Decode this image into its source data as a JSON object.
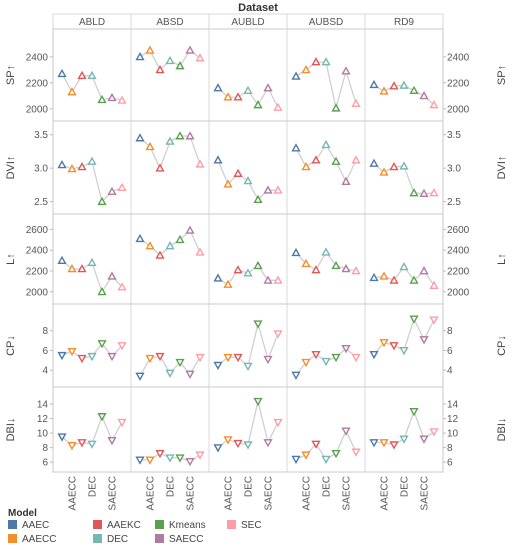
{
  "chart_data": {
    "type": "line",
    "title": "Dataset",
    "datasets": [
      "ABLD",
      "ABSD",
      "AUBLD",
      "AUBSD",
      "RD9"
    ],
    "x_categories": [
      "AAEC",
      "AAECC",
      "AAEKC",
      "DEC",
      "Kmeans",
      "SAECC",
      "SEC"
    ],
    "x_tick_labels": [
      "AAECC",
      "DEC",
      "SAECC"
    ],
    "legend_title": "Model",
    "series": [
      {
        "name": "AAEC",
        "color": "#4e79a7"
      },
      {
        "name": "AAECC",
        "color": "#f28e2b"
      },
      {
        "name": "AAEKC",
        "color": "#e15759"
      },
      {
        "name": "DEC",
        "color": "#76b7b2"
      },
      {
        "name": "Kmeans",
        "color": "#59a14f"
      },
      {
        "name": "SAECC",
        "color": "#b07aa1"
      },
      {
        "name": "SEC",
        "color": "#ff9da7"
      }
    ],
    "rows": [
      {
        "metric": "SP↑",
        "arrow": "up",
        "ylim": [
          1960,
          2560
        ],
        "ticks": [
          2000,
          2200,
          2400
        ],
        "values": {
          "ABLD": [
            2270,
            2130,
            2255,
            2255,
            2070,
            2085,
            2065
          ],
          "ABSD": [
            2400,
            2450,
            2300,
            2370,
            2330,
            2450,
            2390
          ],
          "AUBLD": [
            2160,
            2090,
            2090,
            2140,
            2030,
            2160,
            2010
          ],
          "AUBSD": [
            2250,
            2300,
            2360,
            2360,
            2005,
            2290,
            2040
          ],
          "RD9": [
            2185,
            2135,
            2175,
            2180,
            2140,
            2100,
            2030
          ]
        }
      },
      {
        "metric": "DVI↑",
        "arrow": "up",
        "ylim": [
          2.42,
          3.6
        ],
        "ticks": [
          2.5,
          3.0,
          3.5
        ],
        "values": {
          "ABLD": [
            3.05,
            2.99,
            3.02,
            3.1,
            2.5,
            2.65,
            2.71
          ],
          "ABSD": [
            3.45,
            3.32,
            3.0,
            3.4,
            3.48,
            3.48,
            3.06
          ],
          "AUBLD": [
            3.12,
            2.76,
            2.92,
            2.81,
            2.53,
            2.67,
            2.67
          ],
          "AUBSD": [
            3.3,
            3.02,
            3.12,
            3.35,
            3.1,
            2.8,
            3.12
          ],
          "RD9": [
            3.07,
            2.94,
            3.02,
            3.03,
            2.63,
            2.62,
            2.63
          ]
        }
      },
      {
        "metric": "L↑",
        "arrow": "up",
        "ylim": [
          1950,
          2680
        ],
        "ticks": [
          2000,
          2200,
          2400,
          2600
        ],
        "values": {
          "ABLD": [
            2300,
            2220,
            2220,
            2280,
            2000,
            2150,
            2045
          ],
          "ABSD": [
            2510,
            2440,
            2350,
            2440,
            2500,
            2590,
            2380
          ],
          "AUBLD": [
            2130,
            2070,
            2210,
            2180,
            2250,
            2110,
            2110
          ],
          "AUBSD": [
            2375,
            2270,
            2210,
            2380,
            2250,
            2220,
            2200
          ],
          "RD9": [
            2135,
            2150,
            2110,
            2240,
            2110,
            2200,
            2060
          ]
        }
      },
      {
        "metric": "CP↓",
        "arrow": "down",
        "ylim": [
          3.0,
          10.0
        ],
        "ticks": [
          4,
          6,
          8
        ],
        "values": {
          "ABLD": [
            5.5,
            5.9,
            5.2,
            5.4,
            6.7,
            5.4,
            6.5
          ],
          "ABSD": [
            3.4,
            5.2,
            5.4,
            3.7,
            4.8,
            3.6,
            5.3
          ],
          "AUBLD": [
            4.5,
            5.3,
            5.3,
            4.4,
            8.7,
            5.1,
            7.7
          ],
          "AUBSD": [
            3.5,
            4.8,
            5.6,
            4.9,
            5.3,
            6.2,
            5.3
          ],
          "RD9": [
            5.6,
            6.8,
            6.5,
            6.0,
            9.2,
            7.1,
            9.1
          ]
        }
      },
      {
        "metric": "DBI↓",
        "arrow": "down",
        "ylim": [
          5.6,
          15.4
        ],
        "ticks": [
          6,
          8,
          10,
          12,
          14
        ],
        "values": {
          "ABLD": [
            9.5,
            8.3,
            8.7,
            8.5,
            12.3,
            9.0,
            11.5
          ],
          "ABSD": [
            6.3,
            6.3,
            7.2,
            6.6,
            6.6,
            6.1,
            7.0
          ],
          "AUBLD": [
            8.0,
            9.1,
            8.6,
            8.4,
            14.4,
            8.7,
            11.5
          ],
          "AUBSD": [
            6.4,
            7.0,
            8.5,
            6.4,
            7.2,
            10.3,
            7.4
          ],
          "RD9": [
            8.7,
            8.7,
            8.4,
            9.2,
            13.0,
            9.2,
            10.2
          ]
        }
      }
    ],
    "legend_position": "bottom-left"
  }
}
